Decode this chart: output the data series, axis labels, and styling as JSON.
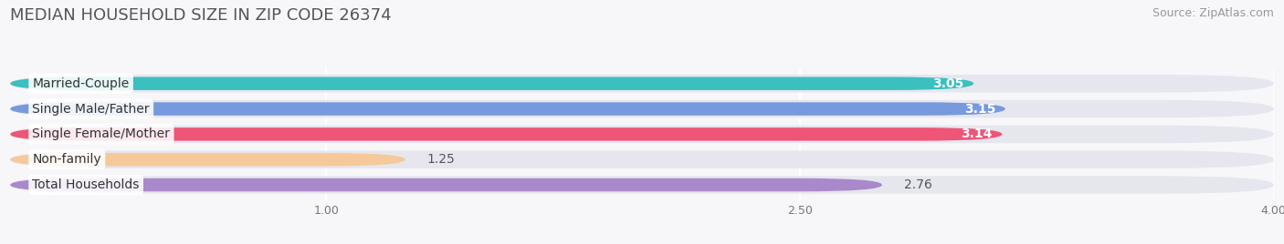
{
  "title": "MEDIAN HOUSEHOLD SIZE IN ZIP CODE 26374",
  "source": "Source: ZipAtlas.com",
  "categories": [
    "Married-Couple",
    "Single Male/Father",
    "Single Female/Mother",
    "Non-family",
    "Total Households"
  ],
  "values": [
    3.05,
    3.15,
    3.14,
    1.25,
    2.76
  ],
  "bar_colors": [
    "#3bbfbf",
    "#7799dd",
    "#ee5577",
    "#f5c999",
    "#aa88cc"
  ],
  "bar_track_color": "#e6e6ee",
  "value_inside": [
    true,
    true,
    true,
    false,
    false
  ],
  "xlim": [
    0,
    4.0
  ],
  "xticks": [
    1.0,
    2.5,
    4.0
  ],
  "title_fontsize": 13,
  "source_fontsize": 9,
  "label_fontsize": 10,
  "value_fontsize": 10,
  "background_color": "#f7f7fa"
}
